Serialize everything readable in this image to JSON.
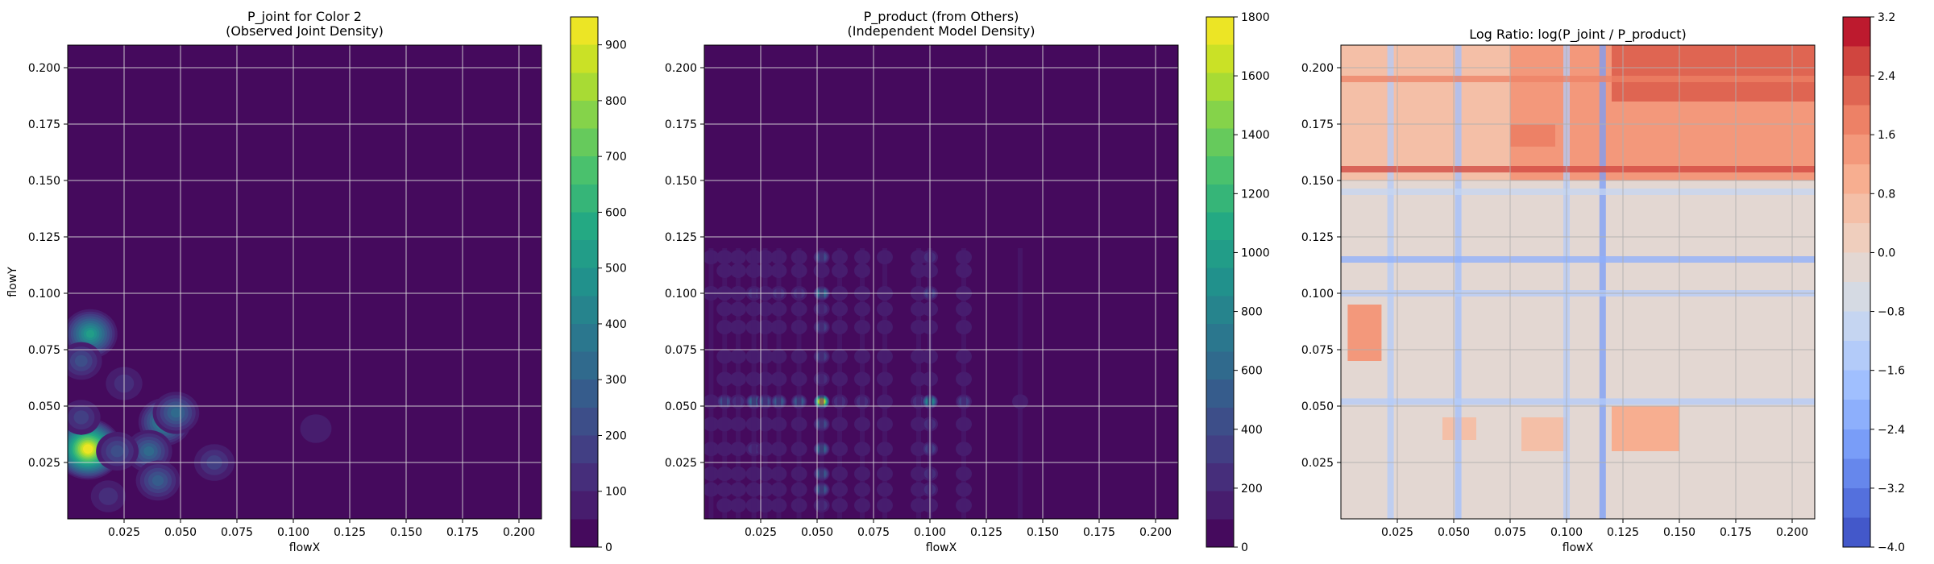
{
  "chart_data": [
    {
      "type": "heatmap",
      "title": "P_joint for Color 2\n(Observed Joint Density)",
      "xlabel": "flowX",
      "ylabel": "flowY",
      "xlim": [
        0.0,
        0.21
      ],
      "ylim": [
        0.0,
        0.21
      ],
      "xticks": [
        "0.025",
        "0.050",
        "0.075",
        "0.100",
        "0.125",
        "0.150",
        "0.175",
        "0.200"
      ],
      "yticks": [
        "0.025",
        "0.050",
        "0.075",
        "0.100",
        "0.125",
        "0.150",
        "0.175",
        "0.200"
      ],
      "grid": true,
      "colormap": "viridis",
      "colorbar": {
        "min": 0,
        "max": 950,
        "ticks": [
          "0",
          "100",
          "200",
          "300",
          "400",
          "500",
          "600",
          "700",
          "800",
          "900"
        ]
      },
      "peaks": [
        {
          "x": 0.009,
          "y": 0.031,
          "value": 950
        },
        {
          "x": 0.01,
          "y": 0.082,
          "value": 500
        },
        {
          "x": 0.043,
          "y": 0.043,
          "value": 450
        },
        {
          "x": 0.048,
          "y": 0.047,
          "value": 300
        },
        {
          "x": 0.036,
          "y": 0.03,
          "value": 300
        },
        {
          "x": 0.04,
          "y": 0.017,
          "value": 250
        },
        {
          "x": 0.022,
          "y": 0.03,
          "value": 220
        },
        {
          "x": 0.065,
          "y": 0.025,
          "value": 180
        },
        {
          "x": 0.006,
          "y": 0.07,
          "value": 200
        },
        {
          "x": 0.025,
          "y": 0.06,
          "value": 120
        },
        {
          "x": 0.006,
          "y": 0.045,
          "value": 150
        },
        {
          "x": 0.018,
          "y": 0.01,
          "value": 100
        },
        {
          "x": 0.11,
          "y": 0.04,
          "value": 60
        }
      ]
    },
    {
      "type": "heatmap",
      "title": "P_product (from Others)\n(Independent Model Density)",
      "xlabel": "flowX",
      "ylabel": "",
      "xlim": [
        0.0,
        0.21
      ],
      "ylim": [
        0.0,
        0.21
      ],
      "xticks": [
        "0.025",
        "0.050",
        "0.075",
        "0.100",
        "0.125",
        "0.150",
        "0.175",
        "0.200"
      ],
      "yticks": [
        "0.025",
        "0.050",
        "0.075",
        "0.100",
        "0.125",
        "0.150",
        "0.175",
        "0.200"
      ],
      "grid": true,
      "colormap": "viridis",
      "colorbar": {
        "min": 0,
        "max": 1800,
        "ticks": [
          "0",
          "200",
          "400",
          "600",
          "800",
          "1000",
          "1200",
          "1400",
          "1600",
          "1800"
        ]
      },
      "marginal_x": [
        {
          "x": 0.003,
          "w": 0.1
        },
        {
          "x": 0.009,
          "w": 0.3
        },
        {
          "x": 0.015,
          "w": 0.2
        },
        {
          "x": 0.022,
          "w": 0.4
        },
        {
          "x": 0.027,
          "w": 0.3
        },
        {
          "x": 0.033,
          "w": 0.35
        },
        {
          "x": 0.042,
          "w": 0.35
        },
        {
          "x": 0.052,
          "w": 1.0
        },
        {
          "x": 0.06,
          "w": 0.2
        },
        {
          "x": 0.07,
          "w": 0.2
        },
        {
          "x": 0.08,
          "w": 0.15
        },
        {
          "x": 0.095,
          "w": 0.2
        },
        {
          "x": 0.1,
          "w": 0.55
        },
        {
          "x": 0.115,
          "w": 0.25
        },
        {
          "x": 0.14,
          "w": 0.05
        }
      ],
      "marginal_y": [
        {
          "y": 0.006,
          "w": 0.2
        },
        {
          "y": 0.013,
          "w": 0.35
        },
        {
          "y": 0.02,
          "w": 0.35
        },
        {
          "y": 0.031,
          "w": 0.4
        },
        {
          "y": 0.042,
          "w": 0.3
        },
        {
          "y": 0.052,
          "w": 1.0
        },
        {
          "y": 0.062,
          "w": 0.2
        },
        {
          "y": 0.072,
          "w": 0.25
        },
        {
          "y": 0.085,
          "w": 0.25
        },
        {
          "y": 0.093,
          "w": 0.2
        },
        {
          "y": 0.1,
          "w": 0.45
        },
        {
          "y": 0.11,
          "w": 0.15
        },
        {
          "y": 0.116,
          "w": 0.3
        }
      ]
    },
    {
      "type": "heatmap",
      "title": "Log Ratio: log(P_joint / P_product)",
      "xlabel": "flowX",
      "ylabel": "",
      "xlim": [
        0.0,
        0.21
      ],
      "ylim": [
        0.0,
        0.21
      ],
      "xticks": [
        "0.025",
        "0.050",
        "0.075",
        "0.100",
        "0.125",
        "0.150",
        "0.175",
        "0.200"
      ],
      "yticks": [
        "0.025",
        "0.050",
        "0.075",
        "0.100",
        "0.125",
        "0.150",
        "0.175",
        "0.200"
      ],
      "grid": true,
      "colormap": "coolwarm",
      "colorbar": {
        "min": -4.0,
        "max": 3.2,
        "ticks": [
          "−4.0",
          "−3.2",
          "−2.4",
          "−1.6",
          "−0.8",
          "0.0",
          "0.8",
          "1.6",
          "2.4",
          "3.2"
        ]
      },
      "regions": [
        {
          "x": [
            0.075,
            0.21
          ],
          "y": [
            0.15,
            0.21
          ],
          "value": 1.4
        },
        {
          "x": [
            0.0,
            0.075
          ],
          "y": [
            0.15,
            0.21
          ],
          "value": 0.4
        },
        {
          "x": [
            0.0,
            0.21
          ],
          "y": [
            0.12,
            0.15
          ],
          "value": -0.4
        },
        {
          "x": [
            0.0,
            0.21
          ],
          "y": [
            0.0,
            0.12
          ],
          "value": -0.3
        },
        {
          "x": [
            0.003,
            0.018
          ],
          "y": [
            0.07,
            0.095
          ],
          "value": 1.5
        },
        {
          "x": [
            0.12,
            0.15
          ],
          "y": [
            0.03,
            0.05
          ],
          "value": 0.9
        },
        {
          "x": [
            0.045,
            0.06
          ],
          "y": [
            0.035,
            0.045
          ],
          "value": 0.6
        },
        {
          "x": [
            0.08,
            0.1
          ],
          "y": [
            0.03,
            0.045
          ],
          "value": 0.4
        },
        {
          "x": [
            0.075,
            0.095
          ],
          "y": [
            0.165,
            0.175
          ],
          "value": 2.0
        },
        {
          "x": [
            0.12,
            0.21
          ],
          "y": [
            0.185,
            0.21
          ],
          "value": 2.3
        }
      ],
      "stripes_x": [
        {
          "x": 0.022,
          "value": -1.2
        },
        {
          "x": 0.052,
          "value": -1.8
        },
        {
          "x": 0.1,
          "value": -1.4
        },
        {
          "x": 0.116,
          "value": -2.6
        }
      ],
      "stripes_y": [
        {
          "y": 0.115,
          "value": -2.2
        },
        {
          "y": 0.1,
          "value": -1.6
        },
        {
          "y": 0.052,
          "value": -1.4
        },
        {
          "y": 0.145,
          "value": -1.0
        },
        {
          "y": 0.155,
          "value": 2.4
        },
        {
          "y": 0.195,
          "value": 1.8
        }
      ]
    }
  ]
}
